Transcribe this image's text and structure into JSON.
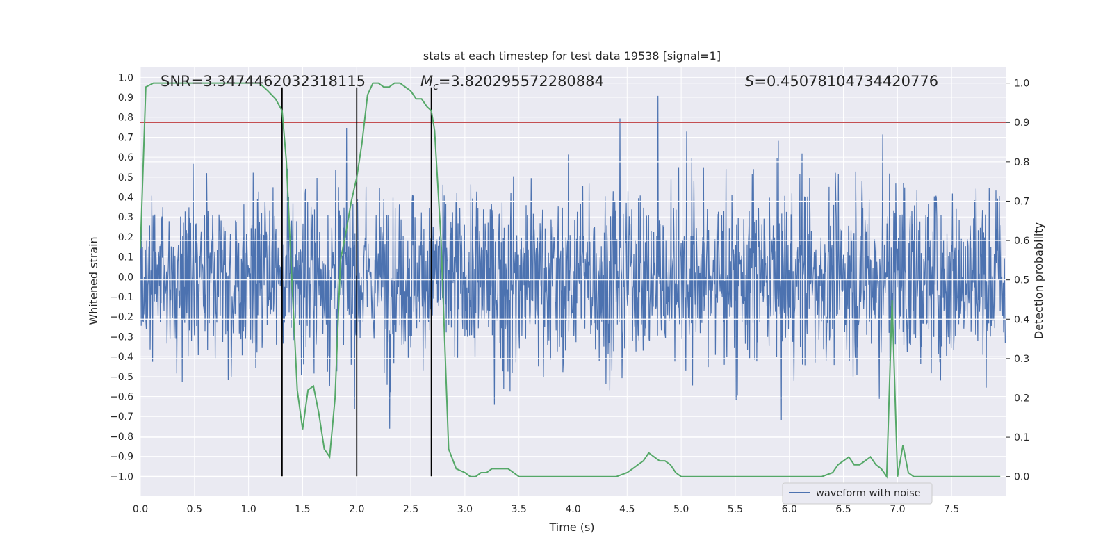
{
  "chart_data": {
    "type": "line",
    "title": "stats at each timestep for test data 19538 [signal=1]",
    "xlabel": "Time (s)",
    "ylabel": "Whitened strain",
    "y2label": "Detection probability",
    "xlim": [
      0.0,
      8.0
    ],
    "ylim": [
      -1.1,
      1.05
    ],
    "y2lim": [
      -0.05,
      1.04
    ],
    "x_ticks": [
      "0.0",
      "0.5",
      "1.0",
      "1.5",
      "2.0",
      "2.5",
      "3.0",
      "3.5",
      "4.0",
      "4.5",
      "5.0",
      "5.5",
      "6.0",
      "6.5",
      "7.0",
      "7.5"
    ],
    "y_ticks": [
      "1.0",
      "0.9",
      "0.8",
      "0.7",
      "0.6",
      "0.5",
      "0.4",
      "0.3",
      "0.2",
      "0.1",
      "0.0",
      "-0.1",
      "-0.2",
      "-0.3",
      "-0.4",
      "-0.5",
      "-0.6",
      "-0.7",
      "-0.8",
      "-0.9",
      "-1.0"
    ],
    "y2_ticks": [
      "1.0",
      "0.9",
      "0.8",
      "0.7",
      "0.6",
      "0.5",
      "0.4",
      "0.3",
      "0.2",
      "0.1",
      "0.0"
    ],
    "annotations": {
      "snr": "SNR=3.3474462032318115",
      "mc_symbol": "M",
      "mc_sub": "c",
      "mc_value": "=3.820295572280884",
      "s_symbol": "S",
      "s_value": "=0.45078104734420776"
    },
    "threshold": 0.9,
    "vertical_lines": [
      1.31,
      2.0,
      2.69
    ],
    "legend": [
      "waveform with noise"
    ],
    "series": [
      {
        "name": "waveform with noise",
        "color": "#4c72b0",
        "axis": "left",
        "sample_rate_hz": 256,
        "duration_s": 8.0,
        "seed": 19538
      },
      {
        "name": "detection probability",
        "color": "#55a868",
        "axis": "right",
        "x": [
          0.0,
          0.05,
          0.12,
          0.2,
          0.4,
          0.6,
          0.8,
          1.0,
          1.1,
          1.18,
          1.25,
          1.31,
          1.35,
          1.4,
          1.45,
          1.5,
          1.55,
          1.6,
          1.65,
          1.7,
          1.75,
          1.8,
          1.85,
          1.9,
          1.95,
          2.0,
          2.05,
          2.1,
          2.15,
          2.2,
          2.25,
          2.3,
          2.35,
          2.4,
          2.45,
          2.5,
          2.55,
          2.6,
          2.65,
          2.69,
          2.72,
          2.78,
          2.85,
          2.92,
          3.0,
          3.05,
          3.1,
          3.15,
          3.2,
          3.25,
          3.3,
          3.35,
          3.4,
          3.45,
          3.5,
          3.55,
          3.6,
          3.8,
          4.0,
          4.2,
          4.4,
          4.5,
          4.55,
          4.6,
          4.65,
          4.7,
          4.75,
          4.8,
          4.85,
          4.9,
          4.95,
          5.0,
          5.1,
          5.3,
          5.5,
          5.7,
          5.9,
          6.1,
          6.3,
          6.4,
          6.45,
          6.5,
          6.55,
          6.6,
          6.65,
          6.7,
          6.75,
          6.8,
          6.85,
          6.9,
          6.95,
          7.0,
          7.05,
          7.1,
          7.15,
          7.2,
          7.25,
          7.3,
          7.35,
          7.4,
          7.5,
          7.6,
          7.7,
          7.8,
          7.95
        ],
        "y": [
          0.58,
          0.99,
          1.0,
          1.0,
          1.0,
          1.0,
          1.0,
          1.0,
          1.0,
          0.98,
          0.96,
          0.93,
          0.8,
          0.5,
          0.22,
          0.12,
          0.22,
          0.23,
          0.16,
          0.07,
          0.05,
          0.2,
          0.55,
          0.62,
          0.7,
          0.76,
          0.85,
          0.97,
          1.0,
          1.0,
          0.99,
          0.99,
          1.0,
          1.0,
          0.99,
          0.98,
          0.96,
          0.96,
          0.94,
          0.93,
          0.88,
          0.6,
          0.07,
          0.02,
          0.01,
          0.0,
          0.0,
          0.01,
          0.01,
          0.02,
          0.02,
          0.02,
          0.02,
          0.01,
          0.0,
          0.0,
          0.0,
          0.0,
          0.0,
          0.0,
          0.0,
          0.01,
          0.02,
          0.03,
          0.04,
          0.06,
          0.05,
          0.04,
          0.04,
          0.03,
          0.01,
          0.0,
          0.0,
          0.0,
          0.0,
          0.0,
          0.0,
          0.0,
          0.0,
          0.01,
          0.03,
          0.04,
          0.05,
          0.03,
          0.03,
          0.04,
          0.05,
          0.03,
          0.02,
          0.0,
          0.45,
          0.0,
          0.08,
          0.01,
          0.0,
          0.0,
          0.0,
          0.0,
          0.0,
          0.0,
          0.0,
          0.0,
          0.0,
          0.0,
          0.0
        ]
      }
    ]
  }
}
